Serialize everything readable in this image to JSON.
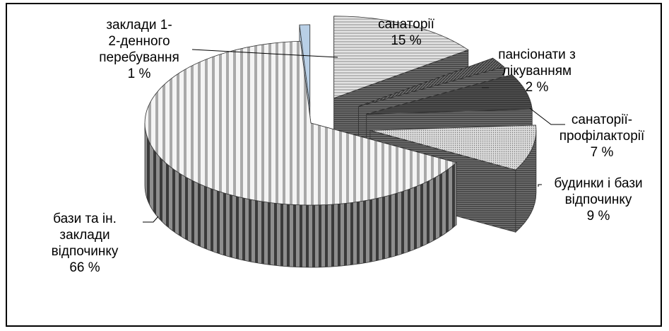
{
  "chart_data": {
    "type": "pie",
    "style": "3d-exploded",
    "slices": [
      {
        "label_lines": [
          "санаторії"
        ],
        "pct_text": "15 %",
        "value": 15,
        "pattern": "horizontal-lines"
      },
      {
        "label_lines": [
          "пансіонати з",
          "лікуванням"
        ],
        "pct_text": "2 %",
        "value": 2,
        "pattern": "diagonal-dense"
      },
      {
        "label_lines": [
          "санаторії-",
          "профілакторії"
        ],
        "pct_text": "7 %",
        "value": 7,
        "pattern": "dark-horizontal"
      },
      {
        "label_lines": [
          "будинки і бази",
          "відпочинку"
        ],
        "pct_text": "9 %",
        "value": 9,
        "pattern": "dots"
      },
      {
        "label_lines": [
          "бази та ін.",
          "заклади",
          "відпочинку"
        ],
        "pct_text": "66 %",
        "value": 66,
        "pattern": "vertical-stripes"
      },
      {
        "label_lines": [
          "заклади 1-",
          "2-денного",
          "перебування"
        ],
        "pct_text": "1 %",
        "value": 1,
        "pattern": "light-blue"
      }
    ]
  }
}
